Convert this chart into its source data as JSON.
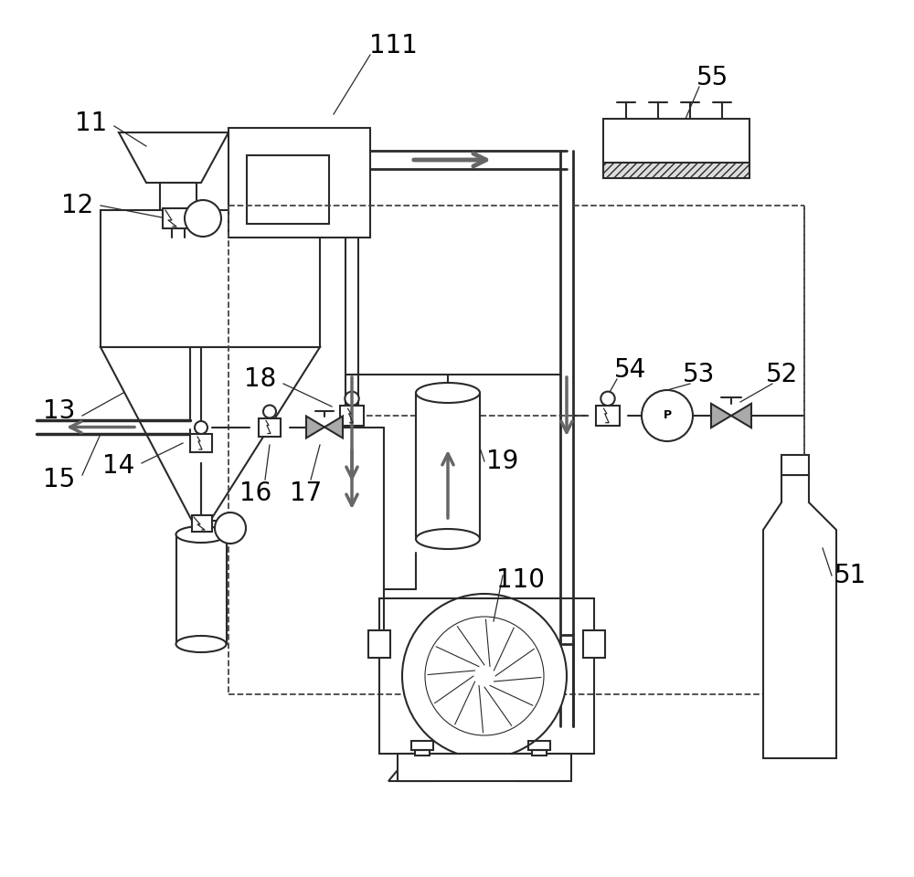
{
  "bg_color": "#ffffff",
  "lc": "#2a2a2a",
  "ac": "#666666",
  "dc": "#444444",
  "lw_main": 1.5,
  "lw_pipe": 2.0,
  "lw_dash": 1.3
}
